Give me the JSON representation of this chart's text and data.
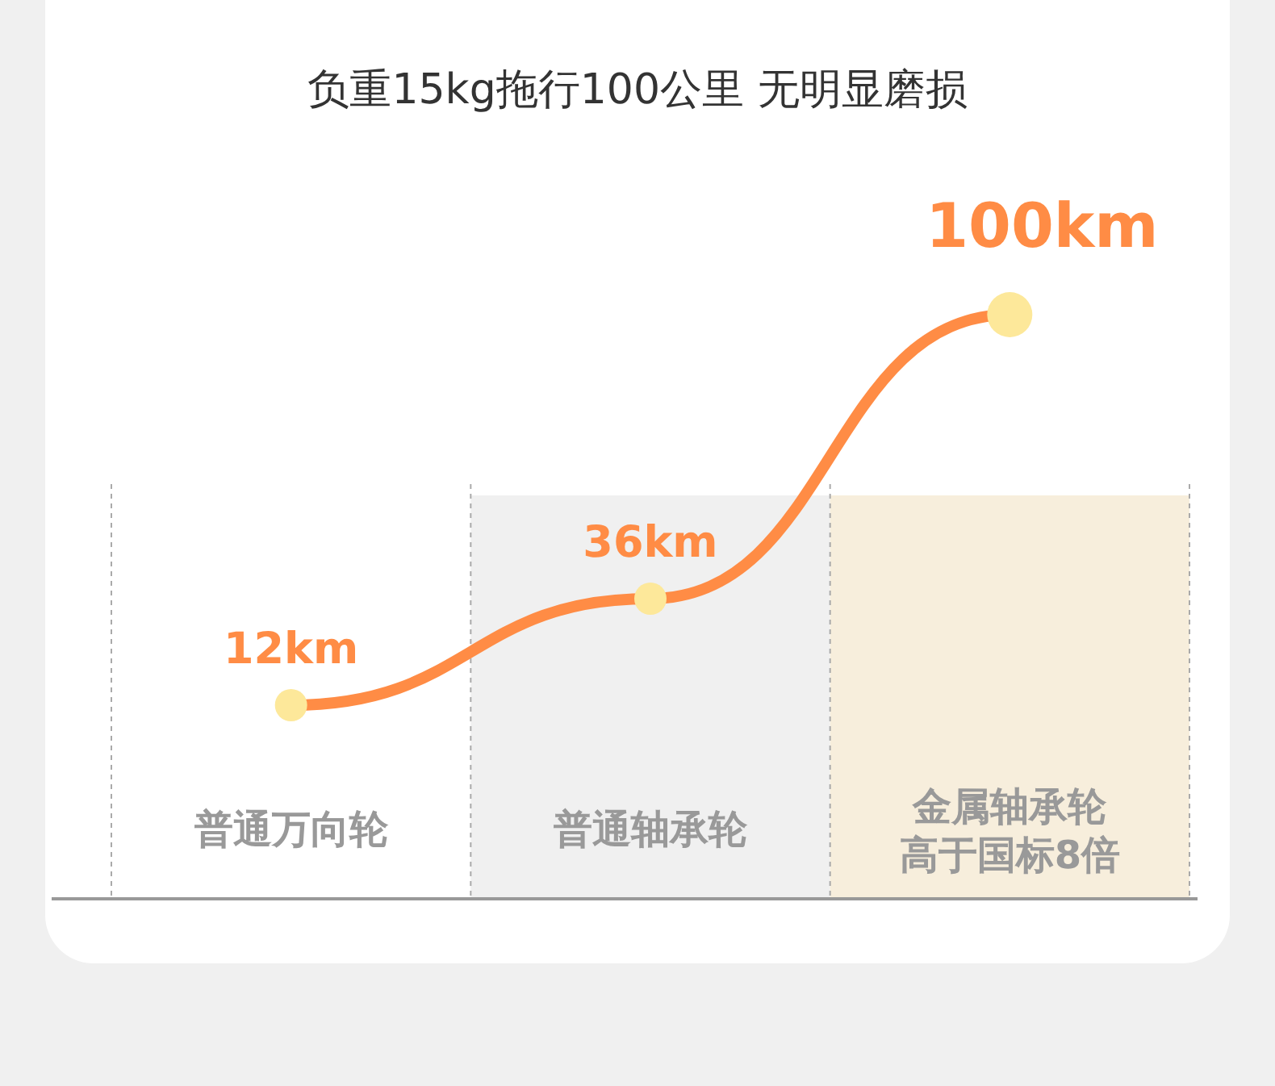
{
  "chart_data": {
    "type": "line",
    "title": "负重15kg拖行100公里 无明显磨损",
    "categories": [
      "普通万向轮",
      "普通轴承轮",
      "金属轴承轮高于国标8倍"
    ],
    "series": [
      {
        "color": "#ff8c45",
        "values": [
          12,
          36,
          100
        ],
        "value_labels": [
          "12km",
          "36km",
          "100km"
        ]
      }
    ],
    "bands": [
      {
        "axis": "x",
        "from": "普通轴承轮",
        "to": "普通轴承轮",
        "color": "#f0f0f0"
      },
      {
        "axis": "x",
        "from": "金属轴承轮高于国标8倍",
        "to": "金属轴承轮高于国标8倍",
        "color": "#f7eedc"
      }
    ],
    "marker": "circle",
    "line_style": "solid"
  }
}
